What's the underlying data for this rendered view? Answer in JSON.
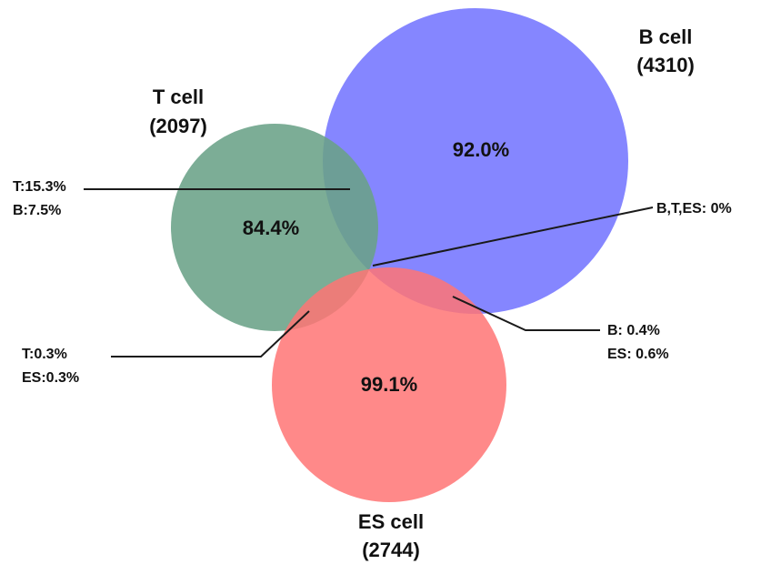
{
  "sets": {
    "b_cell": {
      "title": "B cell",
      "count": "(4310)",
      "unique_pct": "92.0%",
      "color": "#7b7cff"
    },
    "t_cell": {
      "title": "T cell",
      "count": "(2097)",
      "unique_pct": "84.4%",
      "color": "#6aa287"
    },
    "es_cell": {
      "title": "ES cell",
      "count": "(2744)",
      "unique_pct": "99.1%",
      "color": "#ff7474"
    }
  },
  "overlaps": {
    "t_b": {
      "line1": "T:15.3%",
      "line2": "B:7.5%"
    },
    "t_es": {
      "line1": "T:0.3%",
      "line2": "ES:0.3%"
    },
    "b_es": {
      "line1": "B: 0.4%",
      "line2": "ES: 0.6%"
    },
    "b_t_es": {
      "label": "B,T,ES: 0%"
    }
  }
}
